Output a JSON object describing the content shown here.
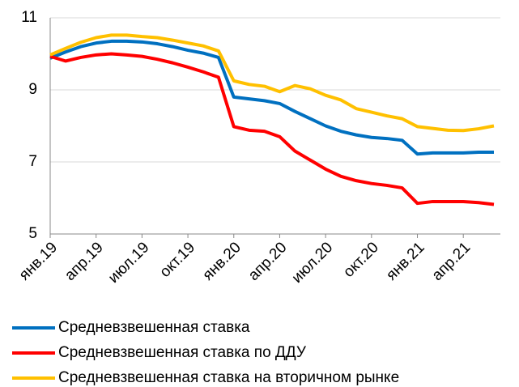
{
  "chart_data": {
    "type": "line",
    "categories": [
      "янв.19",
      null,
      null,
      "апр.19",
      null,
      null,
      "июл.19",
      null,
      null,
      "окт.19",
      null,
      null,
      "янв.20",
      null,
      null,
      "апр.20",
      null,
      null,
      "июл.20",
      null,
      null,
      "окт.20",
      null,
      null,
      "янв.21",
      null,
      null,
      "апр.21",
      null,
      null
    ],
    "series": [
      {
        "name": "Средневзвешенная ставка",
        "color": "#0070c0",
        "values": [
          9.88,
          10.05,
          10.2,
          10.3,
          10.35,
          10.35,
          10.33,
          10.28,
          10.2,
          10.1,
          10.02,
          9.9,
          8.8,
          8.75,
          8.7,
          8.62,
          8.4,
          8.2,
          8.0,
          7.85,
          7.75,
          7.68,
          7.65,
          7.6,
          7.22,
          7.25,
          7.25,
          7.25,
          7.27,
          7.27
        ]
      },
      {
        "name": "Средневзвешенная ставка по ДДУ",
        "color": "#ff0000",
        "values": [
          9.93,
          9.8,
          9.9,
          9.97,
          10.0,
          9.97,
          9.93,
          9.85,
          9.75,
          9.63,
          9.5,
          9.35,
          7.98,
          7.88,
          7.85,
          7.7,
          7.3,
          7.05,
          6.8,
          6.6,
          6.48,
          6.4,
          6.35,
          6.28,
          5.85,
          5.9,
          5.9,
          5.9,
          5.87,
          5.82
        ]
      },
      {
        "name": "Средневзвешенная ставка на вторичном рынке",
        "color": "#ffc000",
        "values": [
          9.97,
          10.15,
          10.32,
          10.45,
          10.52,
          10.52,
          10.48,
          10.45,
          10.38,
          10.3,
          10.22,
          10.08,
          9.25,
          9.15,
          9.1,
          8.95,
          9.12,
          9.03,
          8.85,
          8.72,
          8.48,
          8.38,
          8.28,
          8.2,
          7.98,
          7.93,
          7.88,
          7.87,
          7.92,
          8.0
        ]
      }
    ],
    "ylim": [
      5,
      11
    ],
    "yticks": [
      5,
      7,
      9,
      11
    ],
    "grid": true
  }
}
